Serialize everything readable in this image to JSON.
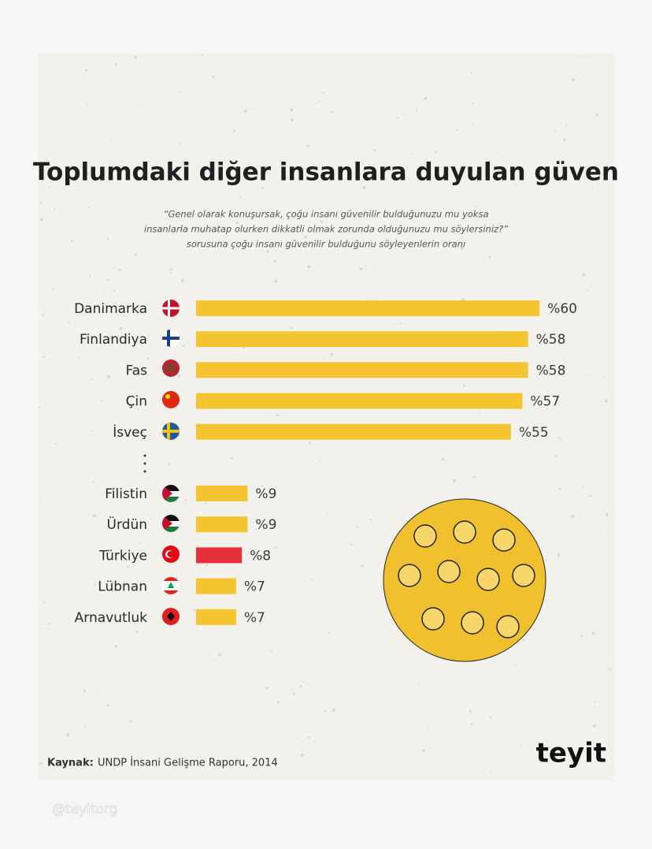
{
  "chart_data": {
    "type": "bar",
    "orientation": "horizontal",
    "title": "Toplumdaki diğer insanlara duyulan güven",
    "subtitle": [
      "“Genel olarak konuşursak, çoğu insanı güvenilir bulduğunuzu mu yoksa",
      "insanlarla muhatap olurken dikkatli olmak zorunda olduğunuzu mu söylersiniz?”",
      "sorusuna çoğu insanı güvenilir bulduğunu söyleyenlerin oranı"
    ],
    "categories": [
      "Danimarka",
      "Finlandiya",
      "Fas",
      "Çin",
      "İsveç",
      "Filistin",
      "Ürdün",
      "Türkiye",
      "Lübnan",
      "Arnavutluk"
    ],
    "values": [
      60,
      58,
      58,
      57,
      55,
      9,
      9,
      8,
      7,
      7
    ],
    "value_labels": [
      "%60",
      "%58",
      "%58",
      "%57",
      "%55",
      "%9",
      "%9",
      "%8",
      "%7",
      "%7"
    ],
    "colors": [
      "#f5c531",
      "#f5c531",
      "#f5c531",
      "#f5c531",
      "#f5c531",
      "#f5c531",
      "#f5c531",
      "#e8303d",
      "#f5c531",
      "#f5c531"
    ]
  },
  "source": {
    "label": "Kaynak:",
    "text": "UNDP İnsani Gelişme Raporu, 2014"
  },
  "logo": "teyit",
  "watermark": "@teyitorg"
}
